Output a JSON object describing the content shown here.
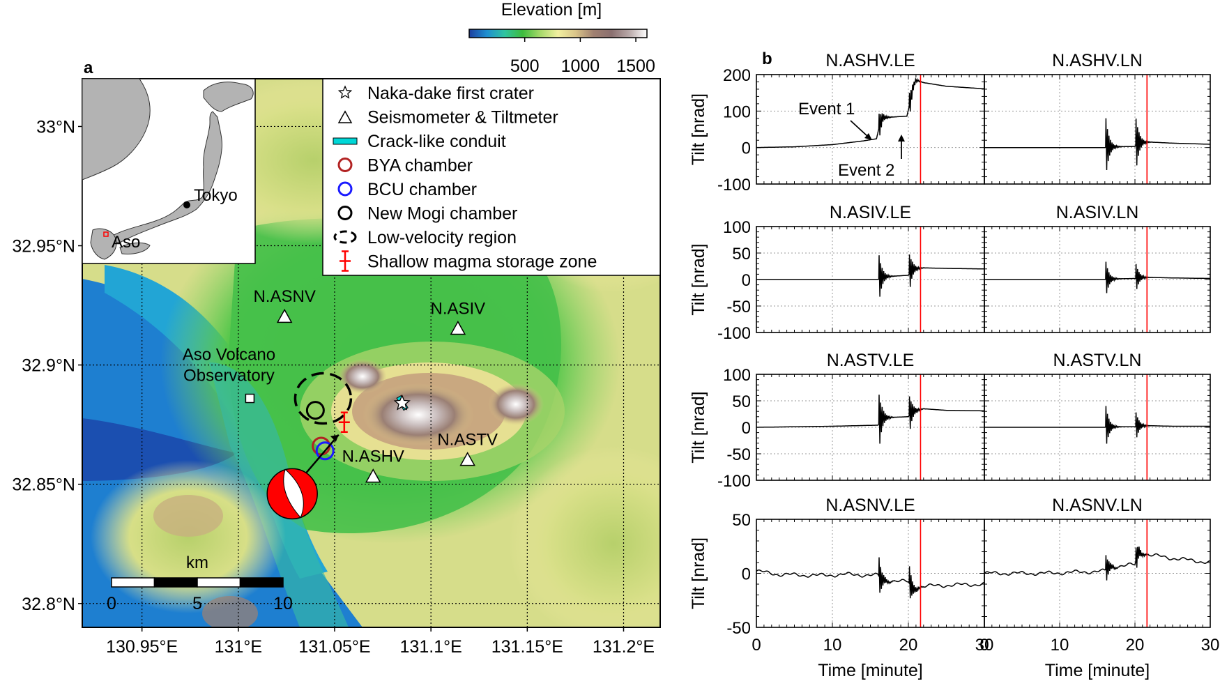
{
  "panel_a": {
    "label": "a",
    "colorbar": {
      "title": "Elevation [m]",
      "range": [
        0,
        1600
      ],
      "ticks": [
        500,
        1000,
        1500
      ],
      "colors": [
        "#1d3fa0",
        "#1f8fd0",
        "#2fc4a0",
        "#3dbc3d",
        "#a6d96a",
        "#f2f0a0",
        "#d9c489",
        "#a08070",
        "#8a6f6f",
        "#b8a8a8",
        "#ffffff"
      ]
    },
    "lon_ticks": [
      "130.95°E",
      "131°E",
      "131.05°E",
      "131.1°E",
      "131.15°E",
      "131.2°E"
    ],
    "lon_values": [
      130.95,
      131.0,
      131.05,
      131.1,
      131.15,
      131.2
    ],
    "lat_ticks": [
      "33°N",
      "32.95°N",
      "32.9°N",
      "32.85°N",
      "32.8°N"
    ],
    "lat_values": [
      33.0,
      32.95,
      32.9,
      32.85,
      32.8
    ],
    "lon_range": [
      130.919,
      131.219
    ],
    "lat_range": [
      32.79,
      33.02
    ],
    "inset": {
      "labels": [
        "Tokyo",
        "Aso"
      ]
    },
    "legend": [
      "Naka-dake first crater",
      "Seismometer & Tiltmeter",
      "Crack-like conduit",
      "BYA chamber",
      "BCU chamber",
      "New Mogi chamber",
      "Low-velocity region",
      "Shallow magma storage zone"
    ],
    "stations": [
      {
        "name": "N.ASNV",
        "lon": 131.024,
        "lat": 32.92
      },
      {
        "name": "N.ASIV",
        "lon": 131.114,
        "lat": 32.915
      },
      {
        "name": "N.ASHV",
        "lon": 131.07,
        "lat": 32.853
      },
      {
        "name": "N.ASTV",
        "lon": 131.119,
        "lat": 32.86
      }
    ],
    "observatory": {
      "lines": [
        "Aso Volcano",
        "Observatory"
      ],
      "lon": 131.006,
      "lat": 32.886
    },
    "scale_bar": {
      "unit": "km",
      "ticks": [
        "0",
        "5",
        "10"
      ]
    },
    "crater": {
      "lon": 131.085,
      "lat": 32.884
    },
    "chambers": {
      "bya": {
        "lon": 131.043,
        "lat": 32.866,
        "color": "#b22222"
      },
      "bcu": {
        "lon": 131.045,
        "lat": 32.864,
        "color": "#1a1aff"
      },
      "mogi": {
        "lon": 131.04,
        "lat": 32.881,
        "color": "#000000"
      },
      "low_velocity": {
        "lon": 131.044,
        "lat": 32.886
      },
      "storage": {
        "lon": 131.055,
        "lat": 32.876,
        "color": "#ff0000"
      },
      "focal": {
        "lon": 131.028,
        "lat": 32.846
      }
    }
  },
  "panel_b": {
    "label": "b",
    "xlabel": "Time [minute]",
    "ylabel": "Tilt [nrad]",
    "xticks": [
      "0",
      "10",
      "20",
      "30"
    ],
    "red_line_minute": 21.6,
    "annotations": {
      "event1": "Event 1",
      "event2": "Event 2"
    },
    "rows": [
      {
        "ylim": [
          -100,
          200
        ],
        "yticks": [
          -100,
          0,
          100,
          200
        ],
        "titles": [
          "N.ASHV.LE",
          "N.ASHV.LN"
        ]
      },
      {
        "ylim": [
          -100,
          100
        ],
        "yticks": [
          -100,
          -50,
          0,
          50,
          100
        ],
        "titles": [
          "N.ASIV.LE",
          "N.ASIV.LN"
        ]
      },
      {
        "ylim": [
          -100,
          100
        ],
        "yticks": [
          -100,
          -50,
          0,
          50,
          100
        ],
        "titles": [
          "N.ASTV.LE",
          "N.ASTV.LN"
        ]
      },
      {
        "ylim": [
          -50,
          50
        ],
        "yticks": [
          -50,
          0,
          50
        ],
        "titles": [
          "N.ASNV.LE",
          "N.ASNV.LN"
        ]
      }
    ]
  },
  "chart_data": [
    {
      "type": "line",
      "title": "N.ASHV.LE",
      "xlabel": "Time [minute]",
      "ylabel": "Tilt [nrad]",
      "xlim": [
        0,
        30
      ],
      "ylim": [
        -100,
        200
      ],
      "x": [
        0,
        5,
        10,
        14,
        15.8,
        16.2,
        16.6,
        19.8,
        20.2,
        20.6,
        21,
        22,
        25,
        30
      ],
      "values": [
        0,
        2,
        8,
        18,
        24,
        60,
        82,
        86,
        120,
        165,
        185,
        178,
        168,
        161
      ]
    },
    {
      "type": "line",
      "title": "N.ASHV.LN",
      "xlabel": "Time [minute]",
      "ylabel": "Tilt [nrad]",
      "xlim": [
        0,
        30
      ],
      "ylim": [
        -100,
        200
      ],
      "x": [
        0,
        10,
        16,
        16.5,
        20,
        20.5,
        22,
        25,
        30
      ],
      "values": [
        0,
        0,
        0,
        2,
        3,
        14,
        15,
        12,
        9
      ]
    },
    {
      "type": "line",
      "title": "N.ASIV.LE",
      "xlabel": "Time [minute]",
      "ylabel": "Tilt [nrad]",
      "xlim": [
        0,
        30
      ],
      "ylim": [
        -100,
        100
      ],
      "x": [
        0,
        10,
        16,
        16.5,
        20,
        20.5,
        22,
        25,
        30
      ],
      "values": [
        0,
        0,
        0,
        5,
        8,
        20,
        22,
        21,
        20
      ]
    },
    {
      "type": "line",
      "title": "N.ASIV.LN",
      "xlabel": "Time [minute]",
      "ylabel": "Tilt [nrad]",
      "xlim": [
        0,
        30
      ],
      "ylim": [
        -100,
        100
      ],
      "x": [
        0,
        10,
        16,
        16.5,
        20,
        20.5,
        22,
        25,
        30
      ],
      "values": [
        0,
        0,
        0,
        1,
        2,
        4,
        4,
        3,
        2
      ]
    },
    {
      "type": "line",
      "title": "N.ASTV.LE",
      "xlabel": "Time [minute]",
      "ylabel": "Tilt [nrad]",
      "xlim": [
        0,
        30
      ],
      "ylim": [
        -100,
        100
      ],
      "x": [
        0,
        10,
        16,
        16.5,
        20,
        20.5,
        22,
        25,
        30
      ],
      "values": [
        0,
        2,
        4,
        18,
        20,
        30,
        35,
        32,
        31
      ]
    },
    {
      "type": "line",
      "title": "N.ASTV.LN",
      "xlabel": "Time [minute]",
      "ylabel": "Tilt [nrad]",
      "xlim": [
        0,
        30
      ],
      "ylim": [
        -100,
        100
      ],
      "x": [
        0,
        10,
        16,
        16.5,
        20,
        20.5,
        22,
        25,
        30
      ],
      "values": [
        0,
        0,
        0,
        1,
        1,
        3,
        3,
        2,
        2
      ]
    },
    {
      "type": "line",
      "title": "N.ASNV.LE",
      "xlabel": "Time [minute]",
      "ylabel": "Tilt [nrad]",
      "xlim": [
        0,
        30
      ],
      "ylim": [
        -50,
        50
      ],
      "x": [
        0,
        3,
        8,
        12,
        16,
        16.5,
        20,
        20.5,
        22,
        25,
        30
      ],
      "values": [
        2,
        -1,
        -2,
        -1,
        -2,
        -6,
        -8,
        -14,
        -12,
        -11,
        -10
      ]
    },
    {
      "type": "line",
      "title": "N.ASNV.LN",
      "xlabel": "Time [minute]",
      "ylabel": "Tilt [nrad]",
      "xlim": [
        0,
        30
      ],
      "ylim": [
        -50,
        50
      ],
      "x": [
        0,
        8,
        12,
        16,
        16.5,
        20,
        20.5,
        22,
        25,
        30
      ],
      "values": [
        0,
        0,
        1,
        2,
        6,
        8,
        20,
        17,
        14,
        10
      ]
    }
  ]
}
